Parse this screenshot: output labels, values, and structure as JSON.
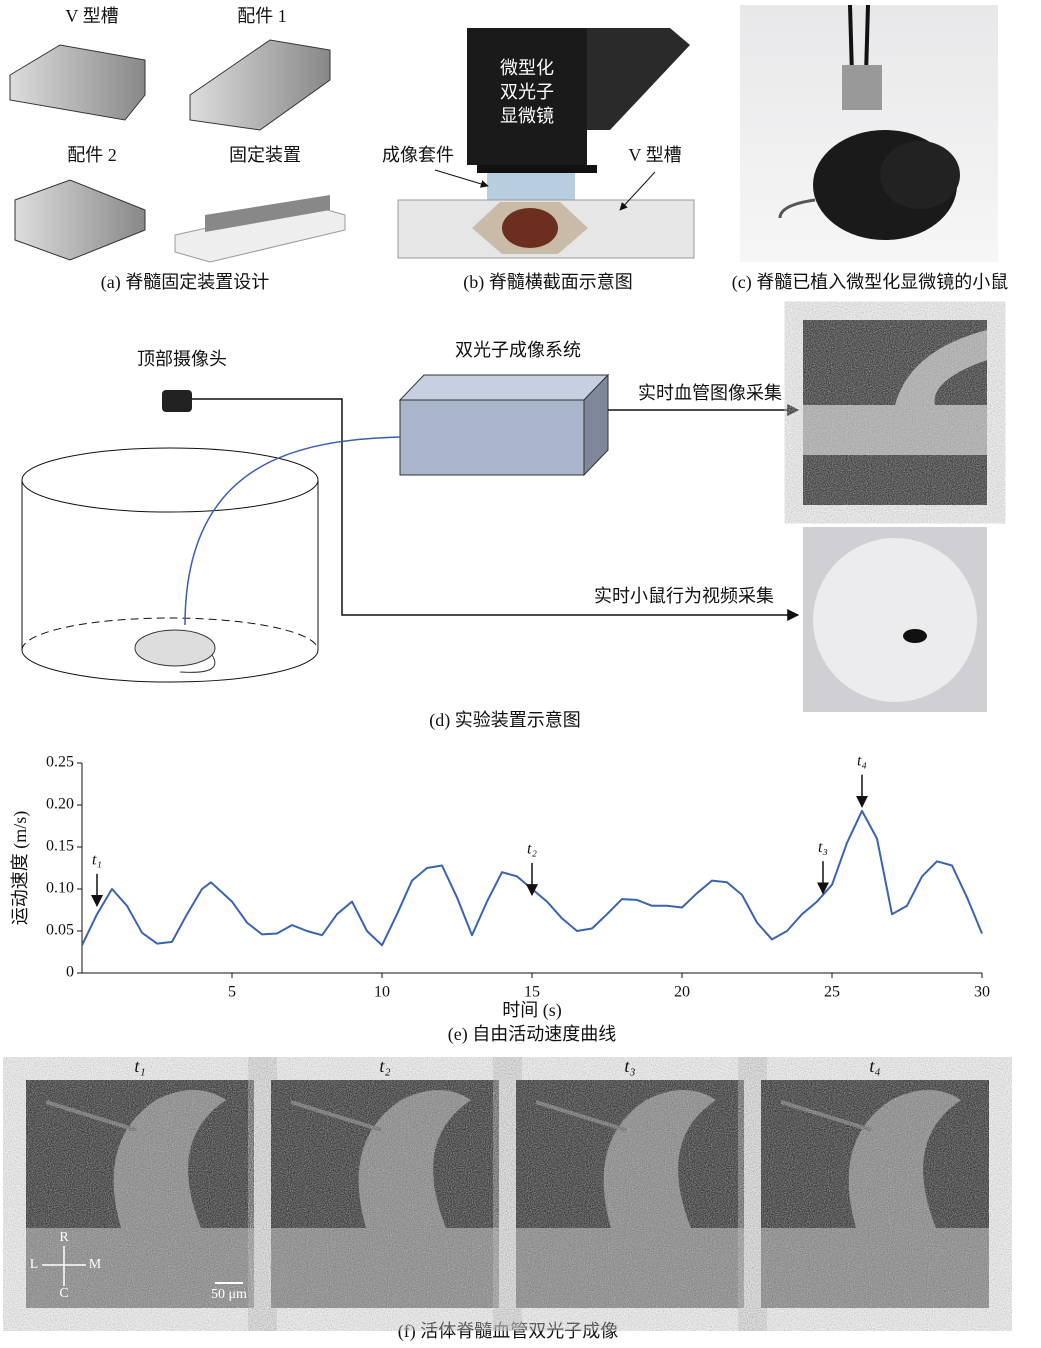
{
  "panel_a": {
    "labels": [
      "V 型槽",
      "配件 1",
      "配件 2",
      "固定装置"
    ],
    "caption": "(a) 脊髓固定装置设计"
  },
  "panel_b": {
    "microscope": [
      "微型化",
      "双光子",
      "显微镜"
    ],
    "imaging_kit": "成像套件",
    "v_groove": "V 型槽",
    "caption": "(b) 脊髓横截面示意图"
  },
  "panel_c": {
    "caption": "(c) 脊髓已植入微型化显微镜的小鼠"
  },
  "panel_d": {
    "camera": "顶部摄像头",
    "system": "双光子成像系统",
    "vessel_capture": "实时血管图像采集",
    "behavior_capture": "实时小鼠行为视频采集",
    "caption": "(d) 实验装置示意图"
  },
  "chart_data": {
    "type": "line",
    "xlabel": "时间 (s)",
    "ylabel": "运动速度 (m/s)",
    "caption": "(e) 自由活动速度曲线",
    "color": "#3a64b0",
    "x": [
      0,
      0.5,
      1,
      1.5,
      2,
      2.5,
      3,
      3.5,
      4,
      4.3,
      5,
      5.5,
      6,
      6.5,
      7,
      7.5,
      8,
      8.5,
      9,
      9.5,
      10,
      10.5,
      11,
      11.5,
      12,
      12.5,
      13,
      13.5,
      14,
      14.5,
      15,
      15.5,
      16,
      16.5,
      17,
      17.5,
      18,
      18.5,
      19,
      19.5,
      20,
      20.5,
      21,
      21.5,
      22,
      22.5,
      23,
      23.5,
      24,
      24.5,
      25,
      25.5,
      26,
      26.5,
      27,
      27.5,
      28,
      28.5,
      29,
      29.5,
      30
    ],
    "values": [
      0.033,
      0.07,
      0.1,
      0.08,
      0.048,
      0.035,
      0.037,
      0.07,
      0.1,
      0.108,
      0.085,
      0.06,
      0.046,
      0.047,
      0.057,
      0.05,
      0.045,
      0.07,
      0.085,
      0.05,
      0.033,
      0.07,
      0.11,
      0.125,
      0.128,
      0.09,
      0.045,
      0.085,
      0.12,
      0.115,
      0.1,
      0.085,
      0.065,
      0.05,
      0.053,
      0.07,
      0.088,
      0.087,
      0.08,
      0.08,
      0.078,
      0.095,
      0.11,
      0.108,
      0.093,
      0.06,
      0.04,
      0.05,
      0.07,
      0.085,
      0.105,
      0.155,
      0.193,
      0.16,
      0.07,
      0.08,
      0.115,
      0.133,
      0.128,
      0.09,
      0.047
    ],
    "xlim": [
      0,
      30
    ],
    "ylim": [
      0,
      0.25
    ],
    "xticks": [
      5,
      10,
      15,
      20,
      25,
      30
    ],
    "yticks": [
      0,
      0.05,
      {
        "value": 0.1,
        "label": "0.10"
      },
      0.15,
      {
        "value": 0.2,
        "label": "0.20"
      },
      0.25
    ],
    "annotations": [
      {
        "text": "t₁",
        "x": 0.5,
        "y": 0.08
      },
      {
        "text": "t₂",
        "x": 15,
        "y": 0.093
      },
      {
        "text": "t₃",
        "x": 24.7,
        "y": 0.095
      },
      {
        "text": "t₄",
        "x": 26,
        "y": 0.198
      }
    ]
  },
  "panel_f": {
    "frames": [
      "t₁",
      "t₂",
      "t₃",
      "t₄"
    ],
    "axes": [
      "R",
      "L",
      "M",
      "C"
    ],
    "scale_bar": "50 μm",
    "caption": "(f) 活体脊髓血管双光子成像"
  }
}
